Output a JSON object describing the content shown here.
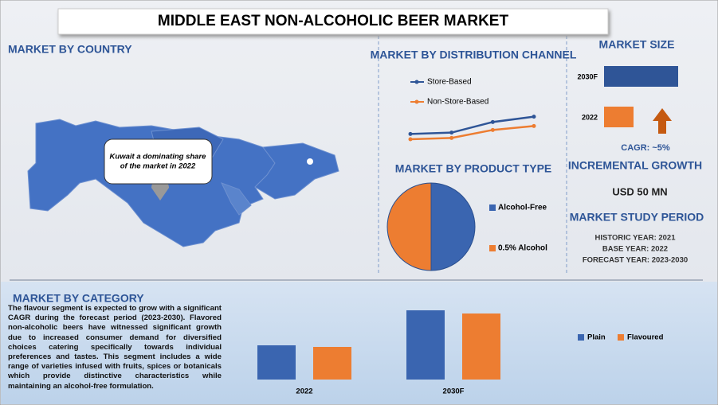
{
  "title": "MIDDLE EAST NON-ALCOHOLIC BEER MARKET",
  "country": {
    "heading": "MARKET BY COUNTRY",
    "callout": [
      "Kuwait a dominating share",
      "of the market in 2022"
    ]
  },
  "market_size_notes": {
    "cagr": "CAGR:  ~5%",
    "incremental_heading": "INCREMENTAL GROWTH",
    "incremental_value": "USD 50 MN",
    "study_heading": "MARKET STUDY PERIOD",
    "historic": "HISTORIC YEAR: 2021",
    "base": "BASE YEAR: 2022",
    "forecast": "FORECAST YEAR: 2023-2030"
  },
  "category_text": "The flavour segment is expected to grow with a significant CAGR during the forecast period (2023-2030). Flavored non-alcoholic beers have witnessed significant growth due to increased consumer demand for diversified choices catering specifically towards individual preferences and tastes. This segment includes a wide range of varieties infused with fruits, spices or botanicals which provide distinctive characteristics while maintaining an alcohol-free formulation.",
  "chart_data": [
    {
      "type": "line",
      "title": "MARKET BY DISTRIBUTION CHANNEL",
      "categories": [
        null,
        null,
        null,
        null
      ],
      "ylim": [
        0,
        30
      ],
      "series": [
        {
          "name": "Store-Based",
          "color": "#2f5597",
          "values": [
            10,
            11,
            19,
            23
          ]
        },
        {
          "name": "Non-Store-Based",
          "color": "#ed7d31",
          "values": [
            6,
            7,
            13,
            16
          ]
        }
      ]
    },
    {
      "type": "pie",
      "title": "MARKET BY PRODUCT TYPE",
      "categories": [
        "Alcohol-Free",
        "0.5% Alcohol"
      ],
      "values": [
        50,
        50
      ],
      "colors": [
        "#3a65b0",
        "#ed7d31"
      ]
    },
    {
      "type": "hbar",
      "title": "MARKET SIZE",
      "categories": [
        "2030F",
        "2022"
      ],
      "values": [
        93,
        37
      ],
      "colors": [
        "#2f5597",
        "#ed7d31"
      ],
      "xlim": [
        0,
        100
      ]
    },
    {
      "type": "bar",
      "title": "MARKET BY CATEGORY",
      "categories": [
        "2022",
        "2030F"
      ],
      "ylim": [
        0,
        100
      ],
      "series": [
        {
          "name": "Plain",
          "color": "#3a65b0",
          "values": [
            43,
            87
          ]
        },
        {
          "name": "Flavoured",
          "color": "#ed7d31",
          "values": [
            41,
            83
          ]
        }
      ]
    }
  ]
}
